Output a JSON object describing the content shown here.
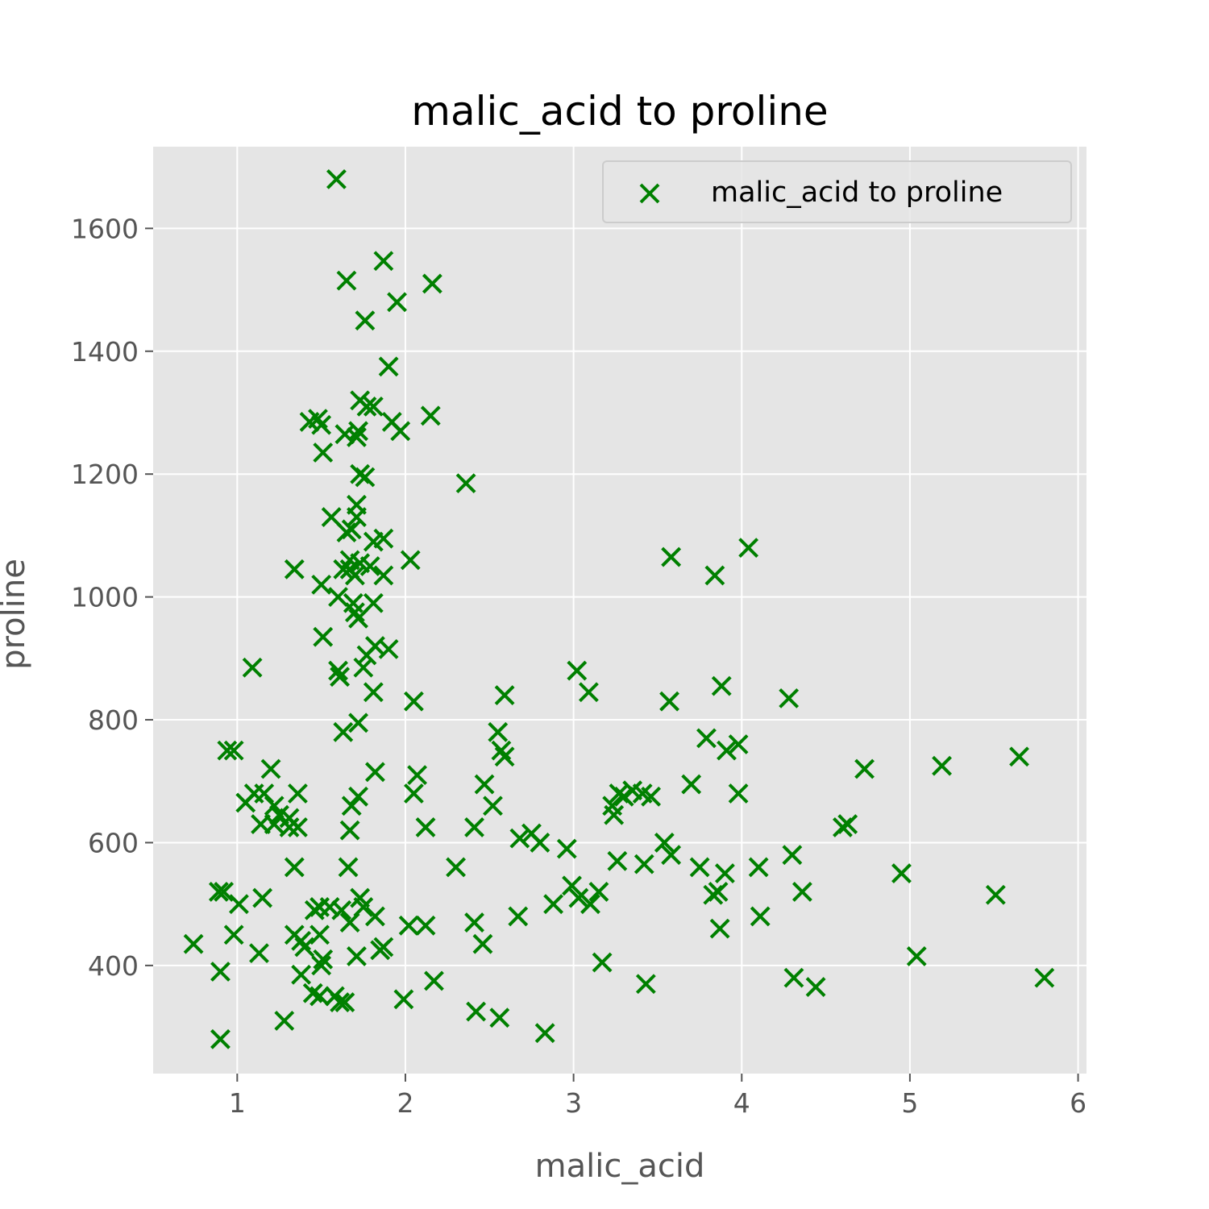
{
  "chart_data": {
    "type": "scatter",
    "title": "malic_acid to proline",
    "xlabel": "malic_acid",
    "ylabel": "proline",
    "xlim": [
      0.5,
      6.05
    ],
    "ylim": [
      224,
      1733
    ],
    "xticks": [
      1,
      2,
      3,
      4,
      5,
      6
    ],
    "yticks": [
      400,
      600,
      800,
      1000,
      1200,
      1400,
      1600
    ],
    "xtick_labels": [
      "1",
      "2",
      "3",
      "4",
      "5",
      "6"
    ],
    "ytick_labels": [
      "400",
      "600",
      "800",
      "1000",
      "1200",
      "1400",
      "1600"
    ],
    "grid": true,
    "legend": {
      "position": "top-right",
      "entries": [
        "malic_acid to proline"
      ]
    },
    "colors": {
      "marker": "#008000",
      "plot_background": "#e5e5e5",
      "grid": "#ffffff"
    },
    "series": [
      {
        "name": "malic_acid to proline",
        "marker": "x",
        "points": [
          [
            1.59,
            1680
          ],
          [
            1.87,
            1547
          ],
          [
            1.65,
            1515
          ],
          [
            2.16,
            1510
          ],
          [
            1.95,
            1480
          ],
          [
            1.76,
            1450
          ],
          [
            1.9,
            1375
          ],
          [
            1.73,
            1320
          ],
          [
            1.77,
            1310
          ],
          [
            1.81,
            1310
          ],
          [
            1.92,
            1285
          ],
          [
            1.72,
            1270
          ],
          [
            1.97,
            1270
          ],
          [
            2.15,
            1295
          ],
          [
            1.43,
            1285
          ],
          [
            1.48,
            1290
          ],
          [
            1.5,
            1280
          ],
          [
            1.64,
            1265
          ],
          [
            1.71,
            1260
          ],
          [
            1.51,
            1235
          ],
          [
            1.73,
            1200
          ],
          [
            1.76,
            1195
          ],
          [
            2.36,
            1185
          ],
          [
            1.56,
            1130
          ],
          [
            1.71,
            1150
          ],
          [
            1.71,
            1130
          ],
          [
            1.68,
            1110
          ],
          [
            1.65,
            1105
          ],
          [
            1.87,
            1095
          ],
          [
            1.81,
            1090
          ],
          [
            2.03,
            1060
          ],
          [
            1.67,
            1060
          ],
          [
            1.73,
            1055
          ],
          [
            1.67,
            1045
          ],
          [
            1.63,
            1045
          ],
          [
            1.79,
            1050
          ],
          [
            1.87,
            1035
          ],
          [
            1.7,
            1035
          ],
          [
            1.34,
            1045
          ],
          [
            1.5,
            1020
          ],
          [
            1.6,
            1000
          ],
          [
            1.69,
            990
          ],
          [
            1.7,
            975
          ],
          [
            1.81,
            990
          ],
          [
            1.72,
            965
          ],
          [
            1.51,
            935
          ],
          [
            1.82,
            920
          ],
          [
            1.77,
            905
          ],
          [
            1.9,
            915
          ],
          [
            1.75,
            885
          ],
          [
            1.09,
            885
          ],
          [
            1.6,
            880
          ],
          [
            1.61,
            870
          ],
          [
            1.81,
            845
          ],
          [
            2.05,
            830
          ],
          [
            1.72,
            795
          ],
          [
            1.63,
            780
          ],
          [
            0.94,
            750
          ],
          [
            0.98,
            750
          ],
          [
            1.2,
            720
          ],
          [
            1.82,
            715
          ],
          [
            2.07,
            710
          ],
          [
            1.1,
            680
          ],
          [
            1.16,
            680
          ],
          [
            1.36,
            680
          ],
          [
            1.22,
            660
          ],
          [
            1.05,
            665
          ],
          [
            1.72,
            675
          ],
          [
            1.68,
            660
          ],
          [
            2.05,
            680
          ],
          [
            1.25,
            645
          ],
          [
            1.31,
            640
          ],
          [
            1.31,
            625
          ],
          [
            1.36,
            625
          ],
          [
            1.14,
            630
          ],
          [
            1.22,
            630
          ],
          [
            1.67,
            620
          ],
          [
            2.12,
            625
          ],
          [
            1.34,
            560
          ],
          [
            1.66,
            560
          ],
          [
            0.89,
            520
          ],
          [
            0.92,
            520
          ],
          [
            1.01,
            500
          ],
          [
            1.15,
            510
          ],
          [
            1.46,
            490
          ],
          [
            1.49,
            495
          ],
          [
            1.55,
            495
          ],
          [
            1.62,
            490
          ],
          [
            1.73,
            510
          ],
          [
            1.75,
            495
          ],
          [
            1.82,
            480
          ],
          [
            1.67,
            470
          ],
          [
            0.98,
            450
          ],
          [
            1.34,
            450
          ],
          [
            1.38,
            440
          ],
          [
            1.4,
            430
          ],
          [
            1.49,
            450
          ],
          [
            1.85,
            425
          ],
          [
            1.87,
            430
          ],
          [
            1.71,
            415
          ],
          [
            1.51,
            410
          ],
          [
            1.5,
            400
          ],
          [
            0.74,
            435
          ],
          [
            1.13,
            420
          ],
          [
            0.9,
            390
          ],
          [
            1.38,
            385
          ],
          [
            1.45,
            355
          ],
          [
            1.49,
            350
          ],
          [
            1.58,
            350
          ],
          [
            1.61,
            340
          ],
          [
            1.64,
            340
          ],
          [
            1.28,
            310
          ],
          [
            0.9,
            280
          ],
          [
            1.99,
            345
          ],
          [
            2.02,
            465
          ],
          [
            2.12,
            465
          ],
          [
            2.17,
            375
          ],
          [
            2.41,
            470
          ],
          [
            2.46,
            435
          ],
          [
            2.42,
            325
          ],
          [
            2.56,
            315
          ],
          [
            2.83,
            290
          ],
          [
            2.67,
            480
          ],
          [
            2.88,
            500
          ],
          [
            2.99,
            530
          ],
          [
            3.03,
            510
          ],
          [
            3.1,
            500
          ],
          [
            3.15,
            520
          ],
          [
            3.17,
            405
          ],
          [
            3.43,
            370
          ],
          [
            3.42,
            565
          ],
          [
            3.26,
            570
          ],
          [
            2.3,
            560
          ],
          [
            2.41,
            625
          ],
          [
            2.47,
            695
          ],
          [
            2.52,
            660
          ],
          [
            2.55,
            780
          ],
          [
            2.57,
            750
          ],
          [
            2.59,
            740
          ],
          [
            2.59,
            840
          ],
          [
            2.68,
            607
          ],
          [
            2.75,
            615
          ],
          [
            2.8,
            600
          ],
          [
            2.96,
            590
          ],
          [
            3.02,
            880
          ],
          [
            3.09,
            845
          ],
          [
            3.23,
            660
          ],
          [
            3.24,
            645
          ],
          [
            3.27,
            680
          ],
          [
            3.3,
            675
          ],
          [
            3.35,
            685
          ],
          [
            3.41,
            680
          ],
          [
            3.46,
            675
          ],
          [
            3.54,
            600
          ],
          [
            3.58,
            580
          ],
          [
            3.57,
            830
          ],
          [
            3.58,
            1065
          ],
          [
            3.84,
            1035
          ],
          [
            4.04,
            1080
          ],
          [
            3.7,
            695
          ],
          [
            3.75,
            560
          ],
          [
            3.79,
            770
          ],
          [
            3.83,
            515
          ],
          [
            3.86,
            520
          ],
          [
            3.87,
            460
          ],
          [
            3.9,
            550
          ],
          [
            3.88,
            855
          ],
          [
            3.91,
            750
          ],
          [
            3.98,
            760
          ],
          [
            3.98,
            680
          ],
          [
            4.1,
            560
          ],
          [
            4.11,
            480
          ],
          [
            4.28,
            835
          ],
          [
            4.3,
            580
          ],
          [
            4.31,
            380
          ],
          [
            4.36,
            520
          ],
          [
            4.44,
            365
          ],
          [
            4.6,
            625
          ],
          [
            4.63,
            630
          ],
          [
            4.73,
            720
          ],
          [
            4.95,
            550
          ],
          [
            5.04,
            415
          ],
          [
            5.19,
            725
          ],
          [
            5.51,
            515
          ],
          [
            5.65,
            740
          ],
          [
            5.8,
            380
          ]
        ]
      }
    ]
  }
}
